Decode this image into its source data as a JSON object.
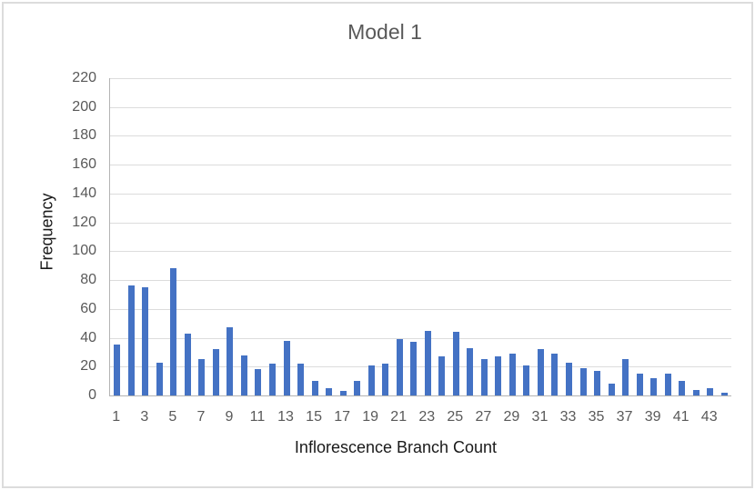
{
  "chart_data": {
    "type": "bar",
    "title": "Model 1",
    "xlabel": "Inflorescence Branch Count",
    "ylabel": "Frequency",
    "categories": [
      1,
      2,
      3,
      4,
      5,
      6,
      7,
      8,
      9,
      10,
      11,
      12,
      13,
      14,
      15,
      16,
      17,
      18,
      19,
      20,
      21,
      22,
      23,
      24,
      25,
      26,
      27,
      28,
      29,
      30,
      31,
      32,
      33,
      34,
      35,
      36,
      37,
      38,
      39,
      40,
      41,
      42,
      43,
      44
    ],
    "values": [
      35,
      76,
      75,
      23,
      88,
      43,
      25,
      32,
      47,
      28,
      18,
      22,
      38,
      22,
      10,
      5,
      3,
      10,
      21,
      22,
      39,
      37,
      45,
      27,
      44,
      33,
      25,
      27,
      29,
      21,
      32,
      29,
      23,
      19,
      17,
      8,
      25,
      15,
      12,
      15,
      10,
      4,
      5,
      2
    ],
    "x_tick_labels": [
      "1",
      "3",
      "5",
      "7",
      "9",
      "11",
      "13",
      "15",
      "17",
      "19",
      "21",
      "23",
      "25",
      "27",
      "29",
      "31",
      "33",
      "35",
      "37",
      "39",
      "41",
      "43"
    ],
    "y_ticks": [
      0,
      20,
      40,
      60,
      80,
      100,
      120,
      140,
      160,
      180,
      200,
      220
    ],
    "ylim": [
      0,
      220
    ],
    "grid": "horizontal",
    "legend": "none",
    "colors": {
      "bar": "#4472C4",
      "gridline": "#dcdcdc",
      "axis_line": "#b3b3b3",
      "tick_label": "#595959",
      "title": "#595959",
      "axis_title": "#1a1a1a"
    }
  }
}
